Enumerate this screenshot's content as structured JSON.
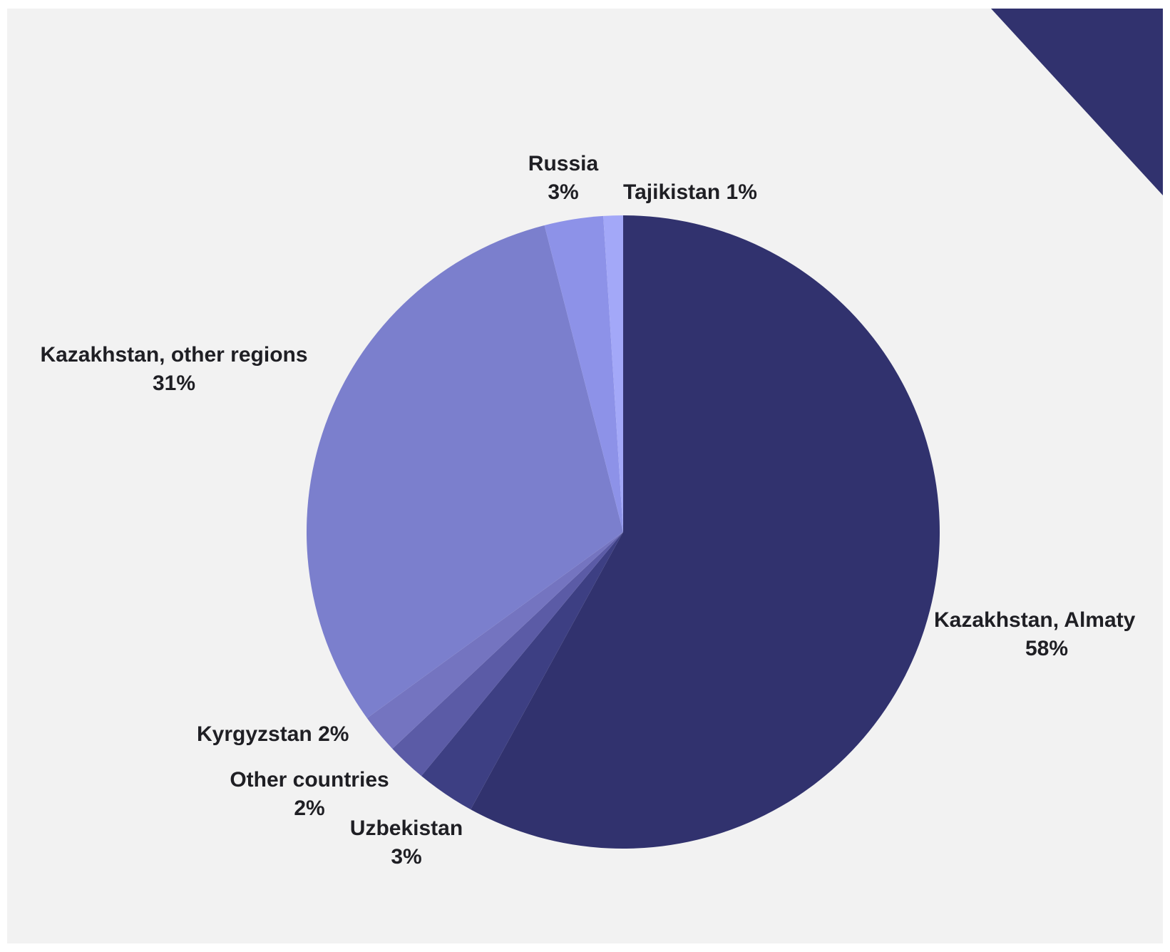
{
  "colors": {
    "background": "#f2f2f2",
    "corner_shape": "#31326e",
    "label_text": "#1f1f24"
  },
  "chart_data": {
    "type": "pie",
    "start": "12 o'clock",
    "direction": "clockwise",
    "legend": "none (labels placed next to slices)",
    "slices": [
      {
        "label": "Kazakhstan, Almaty",
        "value": 58,
        "value_label": "58%",
        "color": "#31326e"
      },
      {
        "label": "Uzbekistan",
        "value": 3,
        "value_label": "3%",
        "color": "#3d3f83"
      },
      {
        "label": "Other countries",
        "value": 2,
        "value_label": "2%",
        "color": "#5b5ba6"
      },
      {
        "label": "Kyrgyzstan",
        "value": 2,
        "value_label": "2%",
        "color": "#7474c0"
      },
      {
        "label": "Kazakhstan, other regions",
        "value": 31,
        "value_label": "31%",
        "color": "#7b7fcd"
      },
      {
        "label": "Russia",
        "value": 3,
        "value_label": "3%",
        "color": "#8d92e8"
      },
      {
        "label": "Tajikistan",
        "value": 1,
        "value_label": "1%",
        "color": "#a3a8f8"
      }
    ]
  }
}
